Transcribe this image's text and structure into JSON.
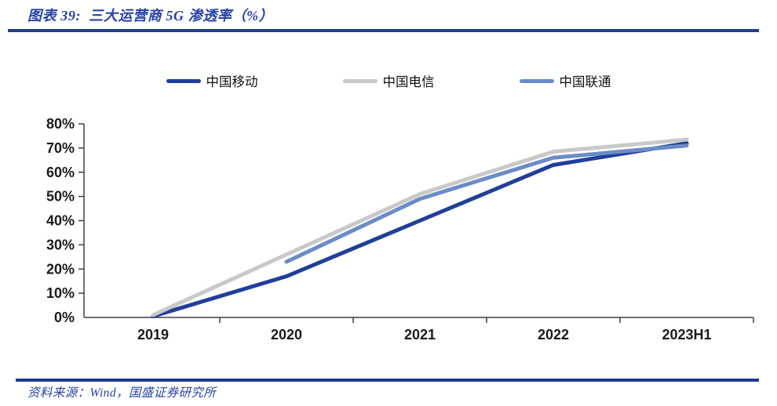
{
  "header": {
    "title": "图表 39:  三大运营商 5G 渗透率（%）"
  },
  "footer": {
    "source": "资料来源：Wind，国盛证券研究所"
  },
  "colors": {
    "text_blue": "#2742A8",
    "rule_blue": "#1F3C8F",
    "mobile": "#1F3F99",
    "telecom": "#C9C9C9",
    "unicom": "#6A8CC8",
    "axis": "#404040",
    "label": "#1A1A1A"
  },
  "chart_data": {
    "type": "line",
    "title": "三大运营商5G渗透率（%）",
    "categories": [
      "2019",
      "2020",
      "2021",
      "2022",
      "2023H1"
    ],
    "series": [
      {
        "key": "mobile",
        "name": "中国移动",
        "values": [
          0.5,
          17,
          40,
          63,
          72
        ]
      },
      {
        "key": "telecom",
        "name": "中国电信",
        "values": [
          1,
          26,
          51,
          68.5,
          73.5
        ]
      },
      {
        "key": "unicom",
        "name": "中国联通",
        "values": [
          null,
          23,
          49,
          66,
          71
        ]
      }
    ],
    "yticks": [
      0,
      10,
      20,
      30,
      40,
      50,
      60,
      70,
      80
    ],
    "ylim": [
      0,
      80
    ],
    "ytick_suffix": "%",
    "legend_position": "top",
    "grid": false,
    "xlabel": "",
    "ylabel": ""
  }
}
